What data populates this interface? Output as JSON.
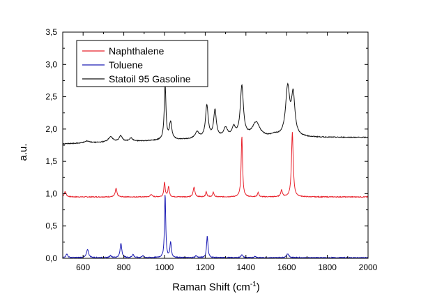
{
  "chart_data": {
    "type": "line",
    "xlabel": "Raman Shift (cm",
    "xlabel_superscript": "-1",
    "xlabel_suffix": ")",
    "ylabel": "a.u.",
    "xlim": [
      500,
      2000
    ],
    "ylim": [
      0.0,
      3.5
    ],
    "x_ticks": [
      600,
      800,
      1000,
      1200,
      1400,
      1600,
      1800,
      2000
    ],
    "y_ticks": [
      {
        "value": 0.0,
        "label": "0,0"
      },
      {
        "value": 0.5,
        "label": "0,5"
      },
      {
        "value": 1.0,
        "label": "1,0"
      },
      {
        "value": 1.5,
        "label": "1,5"
      },
      {
        "value": 2.0,
        "label": "2,0"
      },
      {
        "value": 2.5,
        "label": "2,5"
      },
      {
        "value": 3.0,
        "label": "3,0"
      },
      {
        "value": 3.5,
        "label": "3,5"
      }
    ],
    "grid": false,
    "legend_position": "top-left",
    "series": [
      {
        "name": "Naphthalene",
        "color": "#e8202a",
        "baseline": 0.95,
        "peaks": [
          {
            "x": 512,
            "h": 0.08,
            "w": 6
          },
          {
            "x": 762,
            "h": 0.13,
            "w": 5
          },
          {
            "x": 935,
            "h": 0.04,
            "w": 5
          },
          {
            "x": 1000,
            "h": 0.22,
            "w": 4
          },
          {
            "x": 1020,
            "h": 0.16,
            "w": 4
          },
          {
            "x": 1145,
            "h": 0.15,
            "w": 5
          },
          {
            "x": 1205,
            "h": 0.08,
            "w": 4
          },
          {
            "x": 1240,
            "h": 0.07,
            "w": 4
          },
          {
            "x": 1380,
            "h": 0.95,
            "w": 4
          },
          {
            "x": 1460,
            "h": 0.07,
            "w": 4
          },
          {
            "x": 1575,
            "h": 0.1,
            "w": 5
          },
          {
            "x": 1628,
            "h": 1.0,
            "w": 5
          }
        ]
      },
      {
        "name": "Toluene",
        "color": "#1c1cb4",
        "baseline": 0.01,
        "peaks": [
          {
            "x": 520,
            "h": 0.06,
            "w": 5
          },
          {
            "x": 622,
            "h": 0.13,
            "w": 6
          },
          {
            "x": 735,
            "h": 0.03,
            "w": 6
          },
          {
            "x": 786,
            "h": 0.22,
            "w": 5
          },
          {
            "x": 845,
            "h": 0.05,
            "w": 5
          },
          {
            "x": 893,
            "h": 0.03,
            "w": 5
          },
          {
            "x": 1003,
            "h": 0.99,
            "w": 3.5
          },
          {
            "x": 1030,
            "h": 0.24,
            "w": 4
          },
          {
            "x": 1155,
            "h": 0.03,
            "w": 5
          },
          {
            "x": 1210,
            "h": 0.34,
            "w": 4
          },
          {
            "x": 1380,
            "h": 0.05,
            "w": 5
          },
          {
            "x": 1445,
            "h": 0.02,
            "w": 6
          },
          {
            "x": 1605,
            "h": 0.06,
            "w": 7
          }
        ]
      },
      {
        "name": "Statoil 95 Gasoline",
        "color": "#111111",
        "baseline": 1.77,
        "peaks": [
          {
            "x": 620,
            "h": 0.03,
            "w": 15
          },
          {
            "x": 735,
            "h": 0.08,
            "w": 14
          },
          {
            "x": 785,
            "h": 0.09,
            "w": 9
          },
          {
            "x": 835,
            "h": 0.05,
            "w": 10
          },
          {
            "x": 1003,
            "h": 0.85,
            "w": 5
          },
          {
            "x": 1030,
            "h": 0.27,
            "w": 7
          },
          {
            "x": 1160,
            "h": 0.1,
            "w": 12
          },
          {
            "x": 1208,
            "h": 0.5,
            "w": 8
          },
          {
            "x": 1248,
            "h": 0.42,
            "w": 8
          },
          {
            "x": 1300,
            "h": 0.14,
            "w": 12
          },
          {
            "x": 1340,
            "h": 0.14,
            "w": 10
          },
          {
            "x": 1380,
            "h": 0.78,
            "w": 9
          },
          {
            "x": 1450,
            "h": 0.22,
            "w": 22
          },
          {
            "x": 1605,
            "h": 0.75,
            "w": 12
          },
          {
            "x": 1632,
            "h": 0.62,
            "w": 10
          },
          {
            "x": 1540,
            "h": 0.03,
            "w": 20
          }
        ],
        "tail_level": 1.87
      }
    ]
  }
}
